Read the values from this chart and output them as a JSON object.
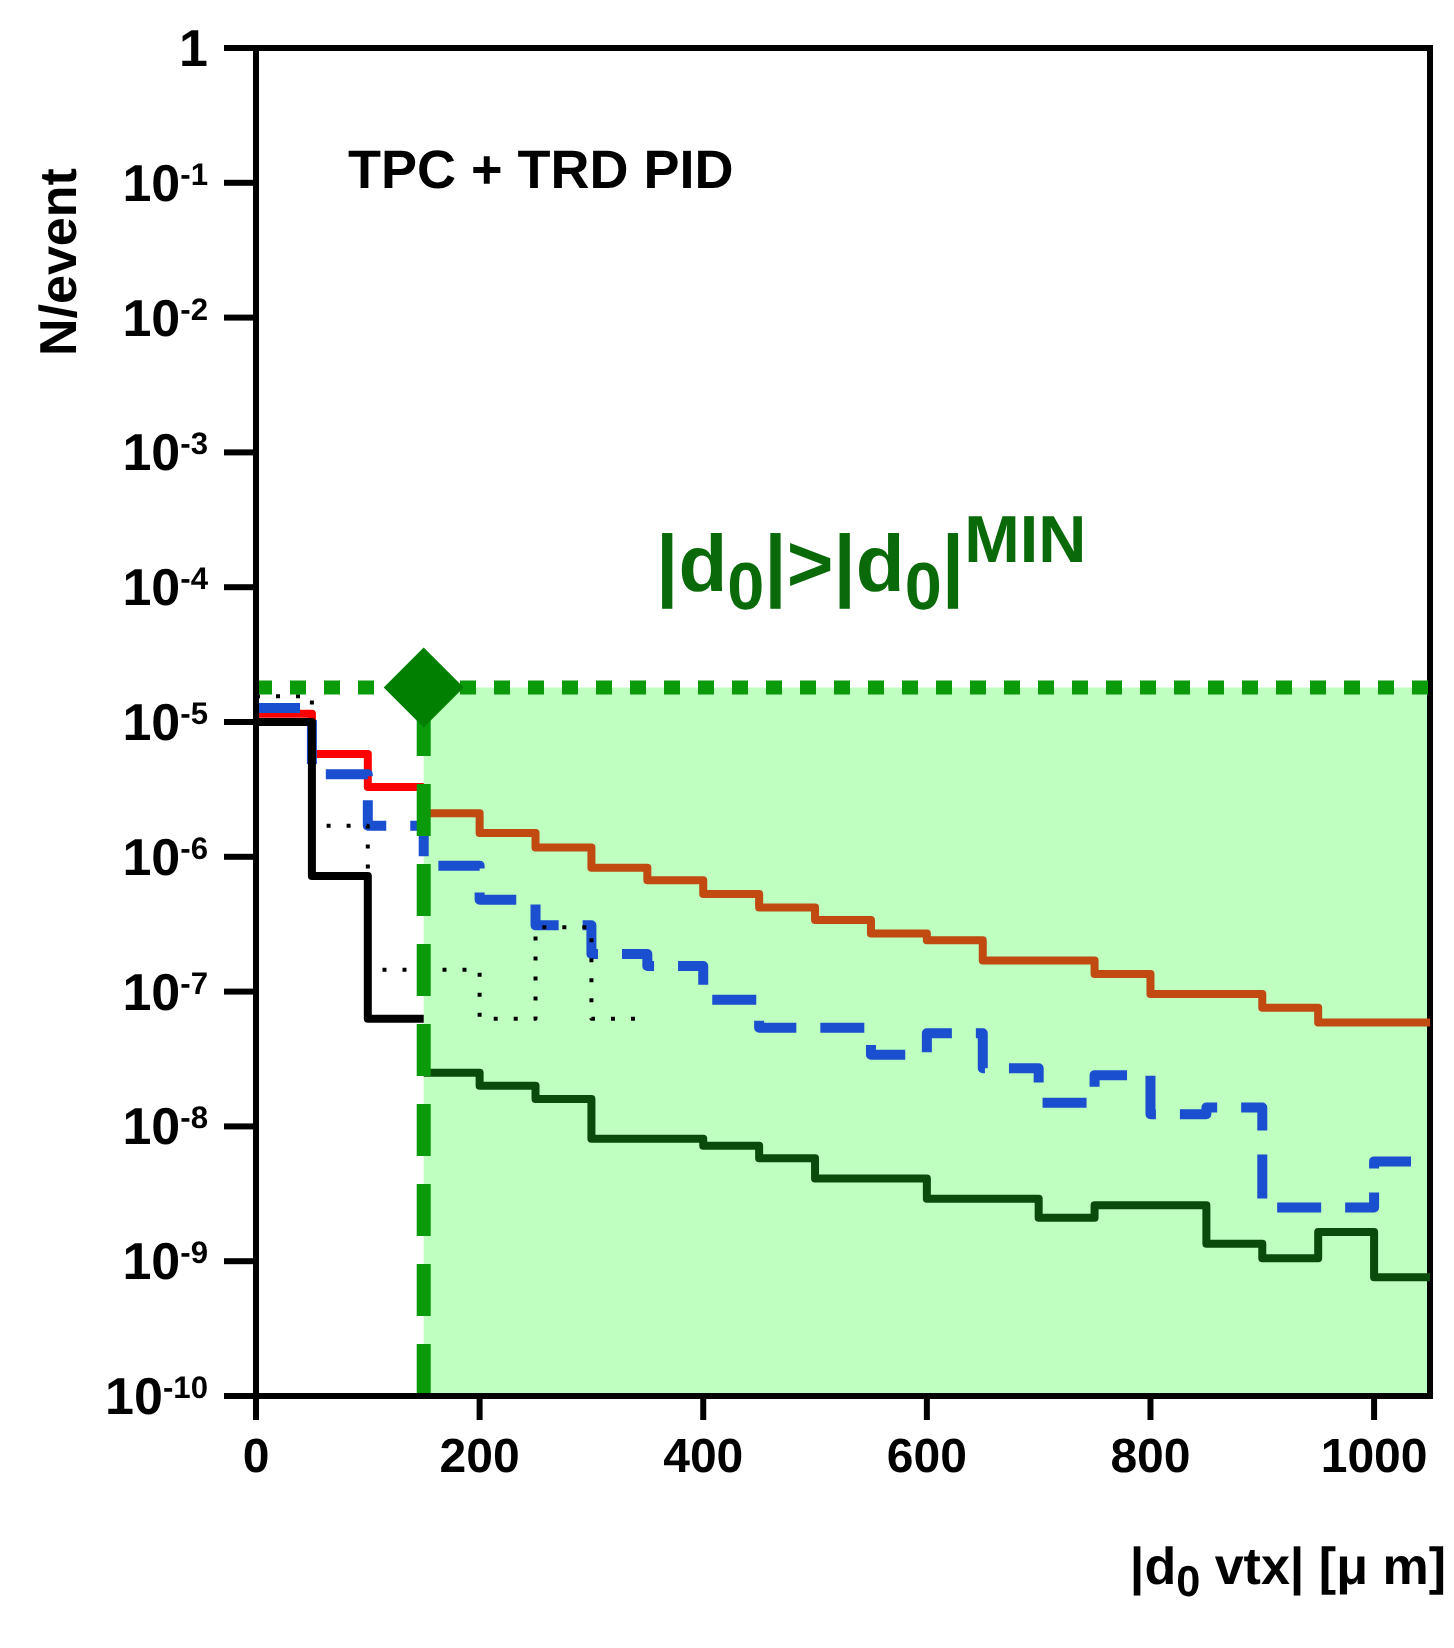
{
  "chart_data": {
    "type": "histogram",
    "xlabel": "|d$_{0}$ vtx| [μ m]",
    "ylabel": "N/event",
    "annotations": [
      "TPC + TRD PID",
      "|d$_{0}$|>|d$_{0}$|$^{MIN}$"
    ],
    "bins": [
      0,
      50,
      100,
      150,
      200,
      250,
      300,
      350,
      400,
      450,
      500,
      550,
      600,
      650,
      700,
      750,
      800,
      850,
      900,
      950,
      1000,
      1050
    ],
    "series": [
      {
        "color": "#ff0000",
        "line_style": "solid",
        "bins": [
          0,
          50,
          100,
          150
        ],
        "values": [
          1.15e-05,
          5.8e-06,
          3.3e-06
        ]
      },
      {
        "color": "#c04a10",
        "line_style": "solid",
        "bins": [
          150,
          200,
          250,
          300,
          350,
          400,
          450,
          500,
          550,
          600,
          650,
          700,
          750,
          800,
          850,
          900,
          950,
          1000,
          1050
        ],
        "values": [
          2.1e-06,
          1.5e-06,
          1.17e-06,
          8.3e-07,
          6.7e-07,
          5.3e-07,
          4.2e-07,
          3.4e-07,
          2.7e-07,
          2.4e-07,
          1.7e-07,
          1.7e-07,
          1.35e-07,
          9.6e-08,
          9.6e-08,
          7.6e-08,
          5.9e-08,
          5.9e-08
        ]
      },
      {
        "color": "#1a4fd0",
        "line_style": "dashed",
        "values": [
          1.27e-05,
          4.1e-06,
          1.7e-06,
          8.6e-07,
          4.8e-07,
          3.1e-07,
          1.9e-07,
          1.55e-07,
          8.7e-08,
          5.4e-08,
          5.4e-08,
          3.4e-08,
          4.9e-08,
          2.7e-08,
          1.5e-08,
          2.4e-08,
          1.23e-08,
          1.38e-08,
          2.5e-09,
          2.5e-09,
          5.5e-09
        ]
      },
      {
        "color": "#000000",
        "line_style": "solid",
        "bins": [
          0,
          50,
          100,
          150
        ],
        "values": [
          1e-05,
          7.2e-07,
          6.3e-08
        ]
      },
      {
        "color": "#0a4a0a",
        "line_style": "solid",
        "bins": [
          150,
          200,
          250,
          300,
          350,
          400,
          450,
          500,
          550,
          600,
          650,
          700,
          750,
          800,
          850,
          900,
          950,
          1000,
          1050
        ],
        "values": [
          2.5e-08,
          2e-08,
          1.6e-08,
          8.1e-09,
          8.1e-09,
          7.2e-09,
          5.8e-09,
          4.1e-09,
          4.1e-09,
          2.9e-09,
          2.9e-09,
          2.1e-09,
          2.6e-09,
          2.6e-09,
          1.35e-09,
          1.05e-09,
          1.65e-09,
          7.6e-10
        ]
      },
      {
        "color": "#000000",
        "line_style": "dotted",
        "bins": [
          0,
          50,
          100,
          150,
          200,
          250,
          300,
          350
        ],
        "values": [
          1.55e-05,
          1.7e-06,
          1.45e-07,
          1.45e-07,
          6.3e-08,
          3e-07,
          6.3e-08
        ]
      },
      {
        "type": "scatter",
        "color": "#007f00",
        "marker": "diamond",
        "x": [
          150
        ],
        "values": [
          1.8e-05
        ]
      }
    ],
    "ref_lines": [
      {
        "axis": "x",
        "value": 150,
        "color": "#0a9a0a",
        "line_style": "dashed"
      },
      {
        "axis": "y",
        "value": 1.8e-05,
        "color": "#0a9a0a",
        "line_style": "dotted"
      }
    ],
    "bands": [
      {
        "axis": "x",
        "from": 150,
        "to": 1050,
        "color": "#bfffbf"
      }
    ],
    "log": "y",
    "grid": false,
    "legend": false,
    "xlim": [
      0,
      1050
    ],
    "xticks": [
      0,
      200,
      400,
      600,
      800,
      1000
    ],
    "ylim": [
      1e-10,
      1
    ],
    "yticks": [
      {
        "value": 1,
        "label": "1"
      },
      {
        "value": 0.1,
        "label": "10$^{-1}$"
      },
      {
        "value": 0.01,
        "label": "10$^{-2}$"
      },
      {
        "value": 0.001,
        "label": "10$^{-3}$"
      },
      {
        "value": 0.0001,
        "label": "10$^{-4}$"
      },
      {
        "value": 1e-05,
        "label": "10$^{-5}$"
      },
      {
        "value": 1e-06,
        "label": "10$^{-6}$"
      },
      {
        "value": 1e-07,
        "label": "10$^{-7}$"
      },
      {
        "value": 1e-08,
        "label": "10$^{-8}$"
      },
      {
        "value": 1e-09,
        "label": "10$^{-9}$"
      },
      {
        "value": 1e-10,
        "label": "10$^{-10}$"
      }
    ]
  }
}
